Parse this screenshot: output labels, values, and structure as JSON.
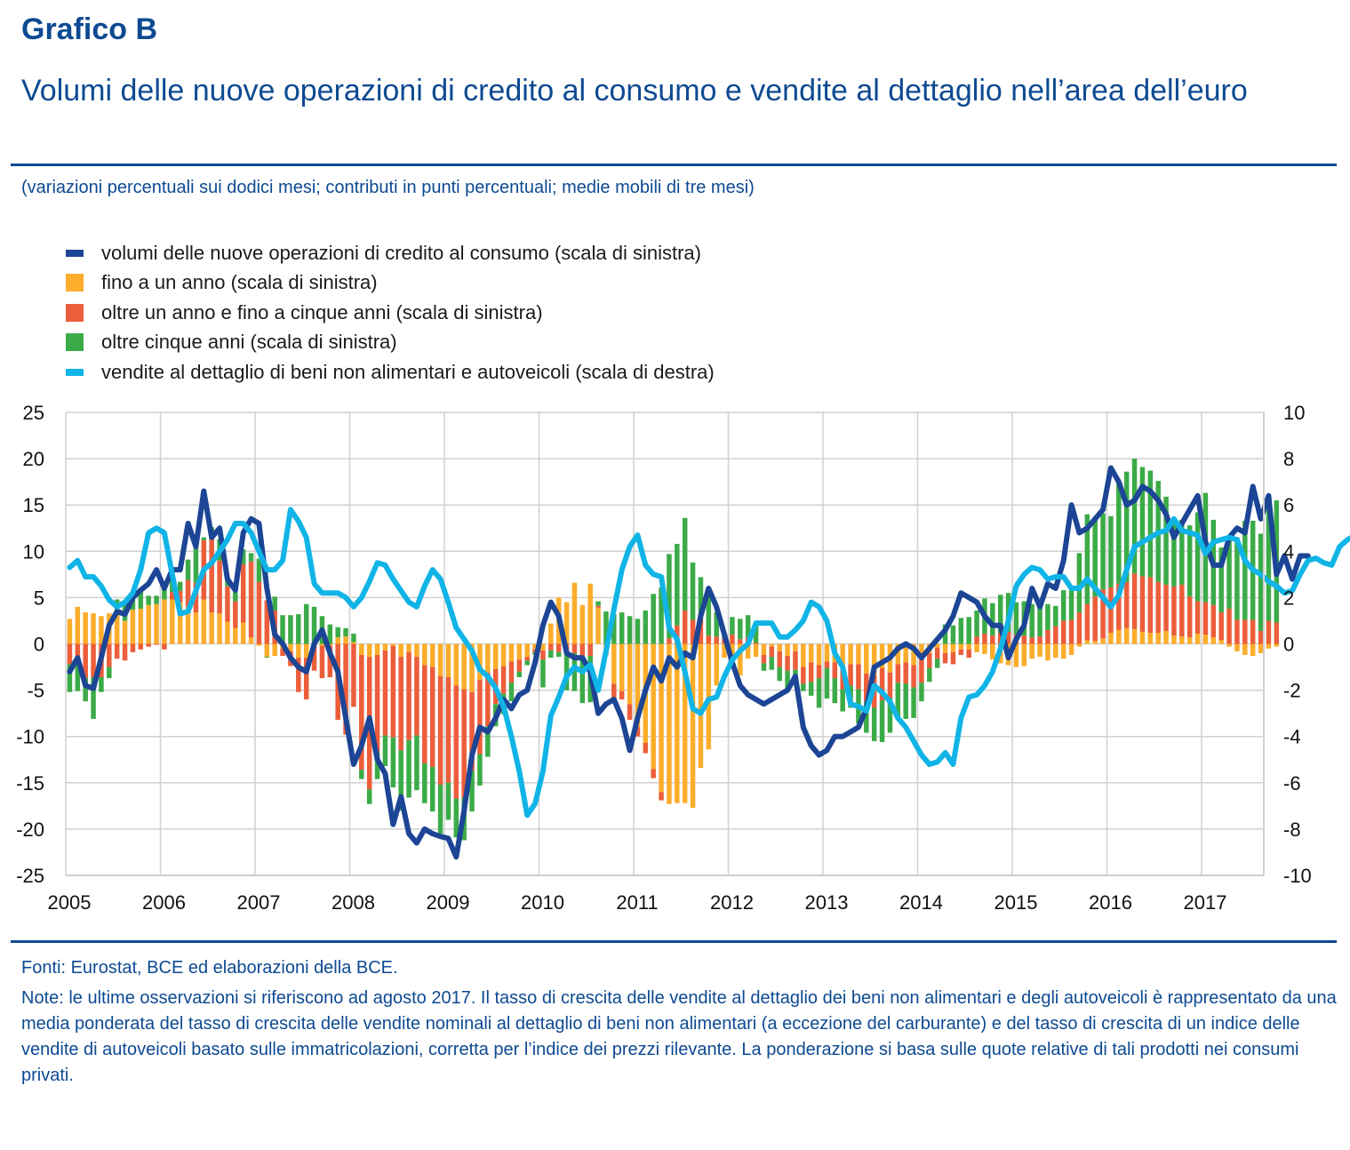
{
  "header": {
    "figure_label": "Grafico B",
    "title": "Volumi delle nuove operazioni di credito al consumo e vendite al dettaglio nell’area dell’euro",
    "subtitle": "(variazioni percentuali sui dodici mesi; contributi in punti percentuali; medie mobili di tre mesi)"
  },
  "footer": {
    "sources": "Fonti: Eurostat, BCE ed elaborazioni della BCE.",
    "notes": "Note: le ultime osservazioni si riferiscono ad agosto 2017. Il tasso di crescita delle vendite al dettaglio dei beni non alimentari e degli autoveicoli è rappresentato da una media ponderata del tasso di crescita delle vendite nominali al dettaglio di beni non alimentari (a eccezione del carburante) e del tasso di crescita di un indice delle vendite di autoveicoli basato sulle immatricolazioni, corretta per l’indice dei prezzi rilevante. La ponderazione si basa sulle quote relative di tali prodotti nei consumi privati."
  },
  "legend": [
    {
      "label": "volumi delle nuove operazioni di credito al consumo (scala di sinistra)",
      "color": "#1c4595",
      "kind": "line"
    },
    {
      "label": "fino a un anno (scala di sinistra)",
      "color": "#fbad2b",
      "kind": "box"
    },
    {
      "label": "oltre un anno e fino a cinque anni (scala di sinistra)",
      "color": "#ec5d3a",
      "kind": "box"
    },
    {
      "label": "oltre cinque anni (scala di sinistra)",
      "color": "#3bab47",
      "kind": "box"
    },
    {
      "label": "vendite al dettaglio di beni non alimentari e autoveicoli (scala di destra)",
      "color": "#11b4e6",
      "kind": "line"
    }
  ],
  "chart_data": {
    "type": "bar",
    "subtype": "stacked bar with lines, dual axis",
    "frequency": "monthly",
    "start": "2005-01",
    "end": "2017-08",
    "x_tick_labels": [
      "2005",
      "2006",
      "2007",
      "2008",
      "2009",
      "2010",
      "2011",
      "2012",
      "2013",
      "2014",
      "2015",
      "2016",
      "2017"
    ],
    "y_left": {
      "min": -25,
      "max": 25,
      "step": 5,
      "ticks": [
        "25",
        "20",
        "15",
        "10",
        "5",
        "0",
        "-5",
        "-10",
        "-15",
        "-20",
        "-25"
      ]
    },
    "y_right": {
      "min": -10,
      "max": 10,
      "step": 2,
      "ticks": [
        "10",
        "8",
        "6",
        "4",
        "2",
        "0",
        "-2",
        "-4",
        "-6",
        "-8",
        "-10"
      ]
    },
    "grid": true,
    "quarterly_anchor_note": "values estimated from the figure",
    "series": [
      {
        "name": "fino a un anno",
        "axis": "left",
        "kind": "bar",
        "color": "#fbad2b",
        "values": [
          2.7,
          4.0,
          3.4,
          3.3,
          3.0,
          3.3,
          3.2,
          2.5,
          3.7,
          3.8,
          4.2,
          4.3,
          4.8,
          4.8,
          4.5,
          4.0,
          3.4,
          4.8,
          3.4,
          3.3,
          2.4,
          1.7,
          2.3,
          0.7,
          -0.2,
          -1.4,
          -1.3,
          -0.5,
          -0.8,
          -1.5,
          -1.5,
          -0.3,
          -0.2,
          -0.2,
          0.7,
          0.8,
          0.2,
          -1.2,
          -1.4,
          -1.2,
          -0.7,
          -0.2,
          -1.4,
          -0.9,
          -1.4,
          -2.3,
          -2.5,
          -3.5,
          -3.6,
          -4.5,
          -4.9,
          -5.2,
          -3.9,
          -3.1,
          -2.7,
          -2.4,
          -1.9,
          -1.7,
          -1.4,
          -0.6,
          -0.7,
          2.2,
          5.0,
          4.5,
          6.6,
          4.2,
          6.5,
          3.9,
          -0.9,
          -4.3,
          -5.1,
          -6.5,
          -9.0,
          -10.7,
          -13.5,
          -16.0,
          -17.3,
          -17.2,
          -17.2,
          -17.7,
          -13.4,
          -11.4,
          -4.5,
          -1.5,
          -2.6,
          -3.4,
          -1.6,
          -1.4,
          -1.2,
          -0.3,
          -0.8,
          -1.3,
          -0.8,
          -2.5,
          -2.0,
          -2.3,
          -1.9,
          -2.0,
          -2.6,
          -2.2,
          -2.2,
          -3.2,
          -3.4,
          -2.6,
          -3.1,
          -2.2,
          -2.0,
          -2.3,
          -1.6,
          -1.0,
          -0.4,
          -1.0,
          -0.9,
          -0.6,
          -0.6,
          -0.9,
          -1.1,
          -1.7,
          -2.1,
          -2.3,
          -2.5,
          -2.4,
          -1.6,
          -1.4,
          -1.8,
          -1.5,
          -1.6,
          -1.2,
          -0.3,
          0.4,
          0.3,
          0.6,
          1.2,
          1.5,
          1.7,
          1.6,
          1.3,
          1.2,
          1.2,
          1.4,
          0.9,
          0.8,
          0.7,
          1.1,
          1.0,
          0.7,
          0.4,
          -0.3,
          -0.8,
          -1.2,
          -1.3,
          -1.0,
          -0.5,
          -0.3
        ]
      },
      {
        "name": "oltre un anno e fino a cinque anni",
        "axis": "left",
        "kind": "bar",
        "color": "#ec5d3a",
        "values": [
          -2.2,
          -1.5,
          -3.7,
          -3.6,
          -3.6,
          -2.5,
          -1.6,
          -1.8,
          -0.9,
          -0.6,
          -0.3,
          -0.1,
          -0.6,
          0.8,
          1.2,
          2.9,
          3.2,
          6.4,
          8.2,
          5.7,
          3.8,
          2.9,
          6.3,
          8.2,
          6.7,
          4.7,
          3.6,
          -0.8,
          -1.6,
          -3.7,
          -4.5,
          -2.6,
          -3.5,
          -3.4,
          -8.2,
          -9.8,
          -6.8,
          -12.4,
          -14.3,
          -10.4,
          -9.2,
          -9.9,
          -10.1,
          -9.5,
          -8.5,
          -10.6,
          -10.8,
          -11.7,
          -11.4,
          -12.2,
          -11.7,
          -8.5,
          -8.0,
          -5.8,
          -3.8,
          -3.0,
          -2.3,
          -1.3,
          -0.4,
          -0.3,
          -1.0,
          -0.7,
          -0.9,
          -0.8,
          -1.0,
          -1.3,
          -1.3,
          0.2,
          -0.3,
          -1.8,
          -0.9,
          -1.7,
          -1.0,
          -1.1,
          -1.0,
          -0.9,
          0.6,
          2.0,
          3.6,
          2.6,
          2.8,
          0.9,
          0.8,
          0.6,
          1.0,
          0.5,
          0.7,
          0.1,
          -0.9,
          -1.1,
          -1.7,
          -1.6,
          -2.0,
          -1.8,
          -2.1,
          -1.4,
          -0.7,
          -1.7,
          -2.3,
          -2.3,
          -2.7,
          -3.0,
          -3.5,
          -3.5,
          -2.7,
          -2.0,
          -2.3,
          -2.4,
          -2.6,
          -1.6,
          -1.2,
          -1.1,
          -1.3,
          -0.6,
          -0.9,
          0.8,
          1.1,
          0.9,
          1.2,
          1.3,
          1.0,
          0.9,
          0.7,
          0.8,
          1.5,
          1.9,
          2.5,
          2.6,
          3.4,
          3.9,
          4.8,
          5.3,
          4.9,
          5.0,
          5.0,
          6.0,
          6.0,
          6.0,
          5.5,
          5.0,
          5.3,
          5.6,
          4.4,
          3.5,
          3.5,
          3.5,
          3.0,
          3.8,
          2.6,
          2.6,
          2.6,
          1.4,
          2.5,
          2.3,
          2.7,
          1.1,
          2.6,
          4.2
        ]
      },
      {
        "name": "oltre cinque anni",
        "axis": "left",
        "kind": "bar",
        "color": "#3bab47",
        "values": [
          -3.0,
          -3.6,
          -2.5,
          -4.5,
          -1.6,
          -1.2,
          1.6,
          2.2,
          1.4,
          2.2,
          1.0,
          0.9,
          1.2,
          1.3,
          1.0,
          2.2,
          4.0,
          0.3,
          1.0,
          2.3,
          0.6,
          1.0,
          1.6,
          0.9,
          2.5,
          -0.1,
          1.5,
          3.1,
          3.1,
          3.2,
          4.3,
          4.0,
          3.0,
          2.1,
          1.1,
          0.9,
          0.9,
          -1.0,
          -1.6,
          -3.0,
          -3.3,
          -5.4,
          -6.5,
          -6.2,
          -5.9,
          -4.3,
          -4.8,
          -5.3,
          -4.0,
          -4.2,
          -4.6,
          -4.4,
          -3.4,
          -3.3,
          -2.4,
          -2.2,
          -2.0,
          -0.6,
          -0.5,
          -0.3,
          -3.0,
          -0.8,
          -0.5,
          -4.2,
          -4.1,
          -5.1,
          -5.0,
          0.5,
          3.5,
          3.2,
          3.4,
          3.0,
          2.7,
          3.6,
          5.4,
          6.1,
          9.1,
          8.8,
          10.0,
          6.2,
          4.4,
          4.7,
          2.6,
          0.4,
          1.9,
          2.2,
          2.4,
          2.0,
          -0.8,
          -1.4,
          -1.5,
          -2.0,
          -1.4,
          -0.8,
          -1.5,
          -3.2,
          -3.3,
          -2.7,
          -2.4,
          -2.4,
          -3.7,
          -3.4,
          -3.6,
          -4.5,
          -3.8,
          -3.8,
          -3.8,
          -3.3,
          -2.0,
          -1.5,
          -1.0,
          2.1,
          2.0,
          2.8,
          2.9,
          2.8,
          3.8,
          3.5,
          4.1,
          4.2,
          3.5,
          3.7,
          3.6,
          3.2,
          2.8,
          2.2,
          3.3,
          3.6,
          6.4,
          9.7,
          8.6,
          8.2,
          7.7,
          10.9,
          11.9,
          12.4,
          11.8,
          11.5,
          10.9,
          9.5,
          7.3,
          7.0,
          7.7,
          9.6,
          11.8,
          9.2,
          7.0,
          7.5,
          8.9,
          10.7,
          10.7,
          10.5,
          12.5,
          13.2,
          14.4,
          14.0,
          8.4,
          10.7,
          8.3,
          8.6,
          5.3
        ]
      },
      {
        "name": "volumi delle nuove operazioni di credito al consumo",
        "axis": "left",
        "kind": "line",
        "color": "#1c4595",
        "values": [
          -3.0,
          -1.5,
          -4.5,
          -4.8,
          -1.5,
          2.0,
          3.5,
          3.2,
          5.0,
          5.8,
          6.5,
          8.0,
          6.0,
          8.0,
          8.0,
          13.0,
          10.5,
          16.5,
          11.5,
          12.5,
          7.0,
          5.8,
          12.0,
          13.5,
          13.0,
          6.0,
          1.0,
          0.0,
          -1.5,
          -2.5,
          -3.0,
          0.0,
          1.5,
          -1.0,
          -3.0,
          -8.0,
          -13.0,
          -11.0,
          -8.0,
          -12.5,
          -14.0,
          -19.5,
          -16.5,
          -20.5,
          -21.5,
          -20.0,
          -20.5,
          -20.8,
          -21.0,
          -23.0,
          -18.0,
          -12.0,
          -9.0,
          -9.5,
          -8.0,
          -6.0,
          -7.0,
          -5.5,
          -5.0,
          -2.0,
          2.0,
          4.5,
          3.0,
          -1.0,
          -1.5,
          -1.5,
          -3.0,
          -7.5,
          -6.5,
          -6.0,
          -8.0,
          -11.5,
          -8.0,
          -5.0,
          -2.5,
          -4.0,
          -1.5,
          -2.5,
          -1.0,
          -1.5,
          3.0,
          6.0,
          4.0,
          1.0,
          -2.0,
          -4.5,
          -5.5,
          -6.0,
          -6.5,
          -6.0,
          -5.5,
          -5.0,
          -3.5,
          -9.0,
          -11.0,
          -12.0,
          -11.5,
          -10.0,
          -10.0,
          -9.5,
          -9.0,
          -7.0,
          -2.5,
          -2.0,
          -1.5,
          -0.5,
          0.0,
          -0.5,
          -1.5,
          -0.5,
          0.5,
          1.5,
          3.0,
          5.5,
          5.0,
          4.5,
          3.0,
          2.0,
          2.0,
          -1.5,
          0.5,
          2.0,
          6.0,
          4.0,
          6.5,
          6.0,
          9.0,
          15.0,
          12.0,
          12.5,
          13.5,
          14.5,
          19.0,
          17.5,
          15.0,
          15.5,
          17.0,
          16.5,
          15.5,
          14.0,
          11.5,
          13.0,
          14.5,
          16.0,
          11.0,
          8.5,
          8.5,
          11.5,
          12.5,
          12.0,
          17.0,
          13.5,
          16.0,
          7.5,
          9.5,
          7.0,
          9.5,
          9.5
        ]
      },
      {
        "name": "vendite al dettaglio di beni non alimentari e autoveicoli",
        "axis": "right",
        "kind": "line",
        "color": "#11b4e6",
        "values": [
          3.3,
          3.6,
          2.9,
          2.9,
          2.5,
          1.9,
          1.6,
          1.8,
          2.2,
          3.2,
          4.8,
          5.0,
          4.8,
          3.0,
          1.3,
          1.4,
          2.3,
          3.2,
          3.5,
          4.0,
          4.5,
          5.2,
          5.2,
          4.8,
          4.0,
          3.2,
          3.2,
          3.6,
          5.8,
          5.3,
          4.6,
          2.6,
          2.2,
          2.2,
          2.2,
          2.0,
          1.6,
          2.0,
          2.7,
          3.5,
          3.4,
          2.8,
          2.3,
          1.8,
          1.6,
          2.5,
          3.2,
          2.8,
          1.8,
          0.7,
          0.2,
          -0.3,
          -1.1,
          -1.4,
          -1.9,
          -2.7,
          -4.0,
          -5.5,
          -7.4,
          -6.9,
          -5.5,
          -3.1,
          -2.3,
          -1.4,
          -1.0,
          -1.2,
          -0.9,
          -2.0,
          -0.3,
          1.5,
          3.2,
          4.2,
          4.7,
          3.4,
          3.0,
          2.9,
          0.7,
          0.2,
          -1.2,
          -2.8,
          -3.0,
          -2.4,
          -2.3,
          -1.4,
          -0.7,
          -0.3,
          0.0,
          0.9,
          0.9,
          0.9,
          0.3,
          0.3,
          0.6,
          1.0,
          1.8,
          1.6,
          1.0,
          -0.4,
          -1.0,
          -2.6,
          -2.7,
          -2.9,
          -1.8,
          -2.1,
          -2.5,
          -3.2,
          -3.6,
          -4.2,
          -4.8,
          -5.2,
          -5.1,
          -4.7,
          -5.2,
          -3.2,
          -2.3,
          -2.2,
          -1.8,
          -1.2,
          -0.2,
          1.0,
          2.5,
          3.0,
          3.3,
          3.2,
          2.8,
          2.9,
          2.9,
          2.4,
          2.4,
          2.8,
          2.4,
          2.0,
          1.6,
          2.1,
          3.2,
          4.2,
          4.4,
          4.6,
          4.8,
          4.9,
          5.4,
          4.9,
          4.8,
          4.7,
          3.9,
          4.4,
          4.5,
          4.6,
          4.5,
          3.6,
          3.2,
          3.0,
          2.7,
          2.5,
          2.2,
          2.3,
          3.0,
          3.6,
          3.7,
          3.5,
          3.4,
          4.2,
          4.5,
          4.7,
          4.9,
          5.0,
          5.0,
          4.8
        ]
      }
    ]
  }
}
